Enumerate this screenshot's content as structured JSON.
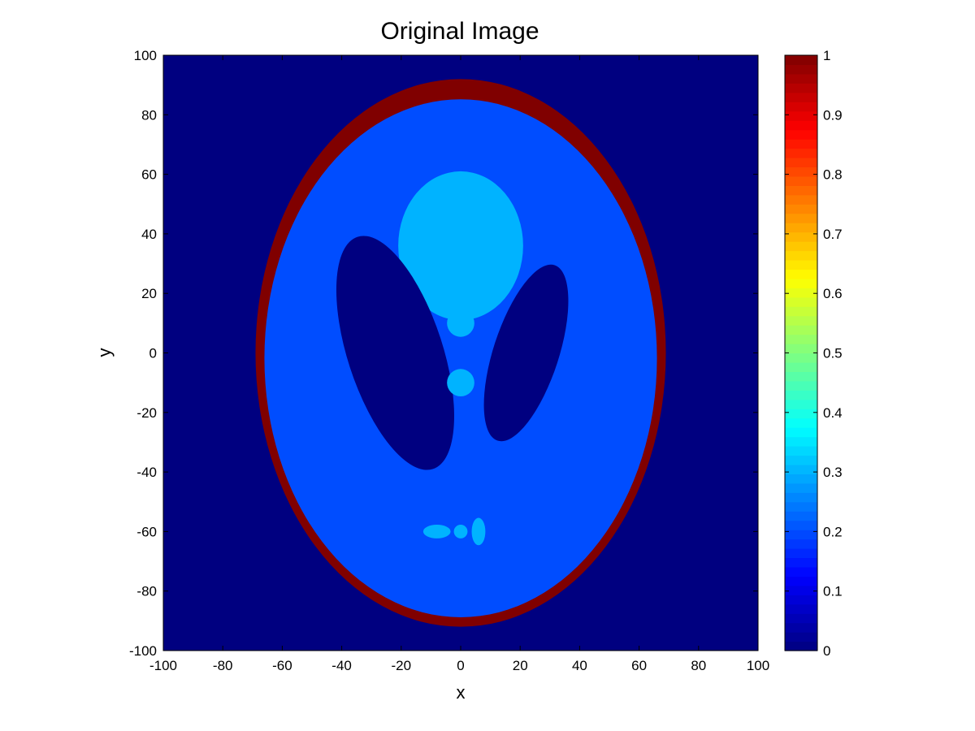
{
  "chart_data": {
    "type": "heatmap",
    "title": "Original Image",
    "xlabel": "x",
    "ylabel": "y",
    "xlim": [
      -100,
      100
    ],
    "ylim": [
      -100,
      100
    ],
    "x_ticks": [
      -100,
      -80,
      -60,
      -40,
      -20,
      0,
      20,
      40,
      60,
      80,
      100
    ],
    "y_ticks": [
      -100,
      -80,
      -60,
      -40,
      -20,
      0,
      20,
      40,
      60,
      80,
      100
    ],
    "grid": false,
    "colormap": "jet",
    "colorbar": {
      "range": [
        0,
        1
      ],
      "ticks": [
        0,
        0.1,
        0.2,
        0.3,
        0.4,
        0.5,
        0.6,
        0.7,
        0.8,
        0.9,
        1
      ],
      "tick_labels": [
        "0",
        "0.1",
        "0.2",
        "0.3",
        "0.4",
        "0.5",
        "0.6",
        "0.7",
        "0.8",
        "0.9",
        "1"
      ],
      "placement": "right"
    },
    "background_value": 0,
    "regions": [
      {
        "shape": "ellipse",
        "cx": 0,
        "cy": 0,
        "rx": 69,
        "ry": 92,
        "angle_deg": 0,
        "value": 1.0
      },
      {
        "shape": "ellipse",
        "cx": 0,
        "cy": -1.8,
        "rx": 66,
        "ry": 87,
        "angle_deg": 0,
        "value": 0.2
      },
      {
        "shape": "ellipse",
        "cx": 0,
        "cy": 36,
        "rx": 21,
        "ry": 25,
        "angle_deg": 0,
        "value": 0.3
      },
      {
        "shape": "ellipse",
        "cx": -22,
        "cy": 0,
        "rx": 16,
        "ry": 41,
        "angle_deg": 18,
        "value": 0.0
      },
      {
        "shape": "ellipse",
        "cx": 22,
        "cy": 0,
        "rx": 11,
        "ry": 31,
        "angle_deg": -18,
        "value": 0.0
      },
      {
        "shape": "ellipse",
        "cx": 0,
        "cy": 10,
        "rx": 4.6,
        "ry": 4.6,
        "angle_deg": 0,
        "value": 0.3
      },
      {
        "shape": "ellipse",
        "cx": 0,
        "cy": -10,
        "rx": 4.6,
        "ry": 4.6,
        "angle_deg": 0,
        "value": 0.3
      },
      {
        "shape": "ellipse",
        "cx": -8,
        "cy": -60,
        "rx": 4.6,
        "ry": 2.3,
        "angle_deg": 0,
        "value": 0.3
      },
      {
        "shape": "ellipse",
        "cx": 0,
        "cy": -60,
        "rx": 2.3,
        "ry": 2.3,
        "angle_deg": 0,
        "value": 0.3
      },
      {
        "shape": "ellipse",
        "cx": 6,
        "cy": -60,
        "rx": 2.3,
        "ry": 4.6,
        "angle_deg": 0,
        "value": 0.3
      }
    ]
  }
}
